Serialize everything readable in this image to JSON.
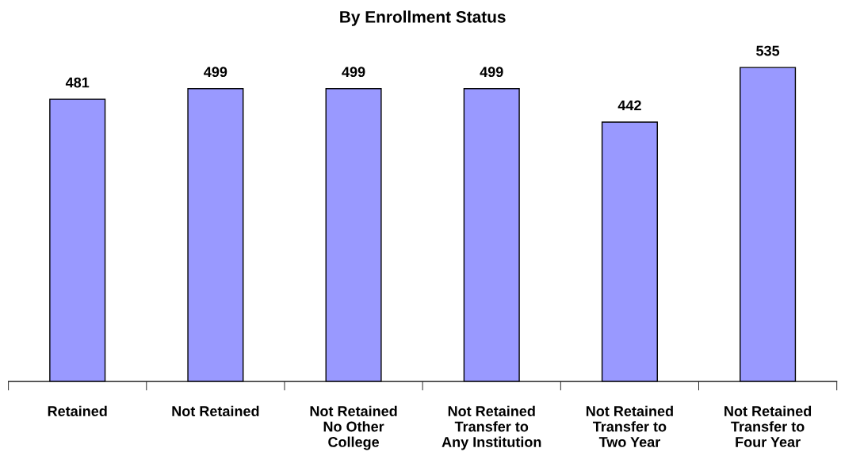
{
  "chart_data": {
    "type": "bar",
    "title": "By Enrollment Status",
    "categories": [
      "Retained",
      "Not Retained",
      "Not Retained\nNo Other\nCollege",
      "Not Retained\nTransfer to\nAny Institution",
      "Not Retained\nTransfer to\nTwo Year",
      "Not Retained\nTransfer to\nFour Year"
    ],
    "values": [
      481,
      499,
      499,
      499,
      442,
      535
    ],
    "color": "#9999ff",
    "data_labels": true,
    "grid": false,
    "legend": false
  }
}
